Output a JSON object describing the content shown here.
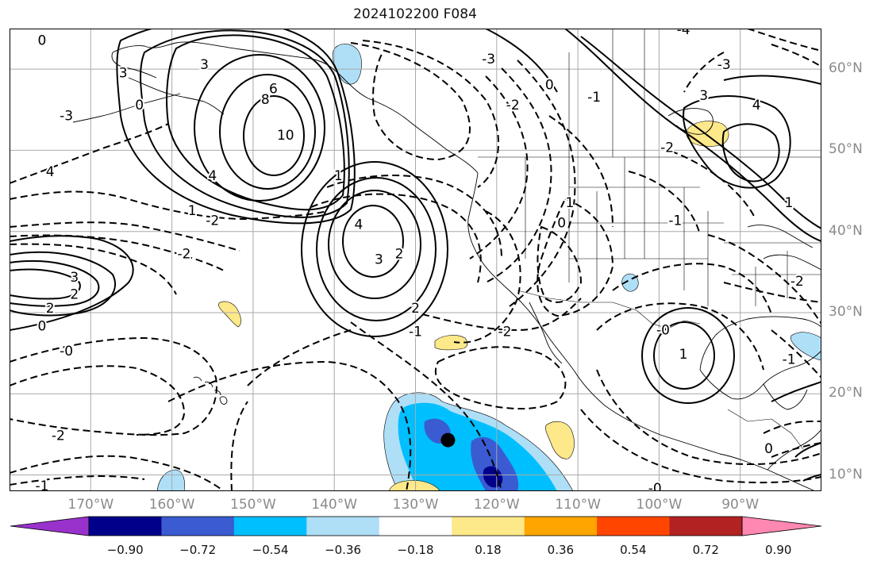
{
  "title": "2024102200 F084",
  "map": {
    "lon_range": [
      -180,
      -80
    ],
    "lat_range": [
      8,
      65
    ],
    "lat_gridlines": [
      10,
      20,
      30,
      40,
      50,
      60
    ],
    "lon_gridlines": [
      -170,
      -160,
      -150,
      -140,
      -130,
      -120,
      -110,
      -100,
      -90
    ],
    "lat_labels": [
      "10°N",
      "20°N",
      "30°N",
      "40°N",
      "50°N",
      "60°N"
    ],
    "lon_labels": [
      "170°W",
      "160°W",
      "150°W",
      "140°W",
      "130°W",
      "120°W",
      "110°W",
      "100°W",
      "90°W"
    ],
    "gridline_color": "#a9a9a9",
    "coastline_color": "#000000",
    "contour_color": "#000000",
    "marker": {
      "name": "storm-center-marker",
      "lon": -126,
      "lat": 14.3,
      "color": "#000000"
    }
  },
  "contour_labels": [
    {
      "text": "0",
      "lon": -176,
      "lat": 63.5
    },
    {
      "text": "3",
      "lon": -166,
      "lat": 59.5
    },
    {
      "text": "3",
      "lon": -156,
      "lat": 60.5
    },
    {
      "text": "6",
      "lon": -147.5,
      "lat": 57.5
    },
    {
      "text": "8",
      "lon": -148.5,
      "lat": 56.2
    },
    {
      "text": "10",
      "lon": -146,
      "lat": 51.8
    },
    {
      "text": "4",
      "lon": -155,
      "lat": 46.8
    },
    {
      "text": "1",
      "lon": -139.5,
      "lat": 46.8
    },
    {
      "text": "4",
      "lon": -175,
      "lat": 47.3
    },
    {
      "text": "-3",
      "lon": -173,
      "lat": 54.2
    },
    {
      "text": "0",
      "lon": -164,
      "lat": 55.5
    },
    {
      "text": "1",
      "lon": -157.5,
      "lat": 42.5
    },
    {
      "text": "-2",
      "lon": -155,
      "lat": 41.3
    },
    {
      "text": "-2",
      "lon": -158.5,
      "lat": 37.2
    },
    {
      "text": "4",
      "lon": -137,
      "lat": 40.8
    },
    {
      "text": "3",
      "lon": -134.5,
      "lat": 36.5
    },
    {
      "text": "2",
      "lon": -132,
      "lat": 37.2
    },
    {
      "text": "3",
      "lon": -172,
      "lat": 34.3
    },
    {
      "text": "2",
      "lon": -175,
      "lat": 30.5
    },
    {
      "text": "0",
      "lon": -176,
      "lat": 28.3
    },
    {
      "text": "-0",
      "lon": -173,
      "lat": 25.2
    },
    {
      "text": "-2",
      "lon": -174,
      "lat": 14.8
    },
    {
      "text": "-1",
      "lon": -176,
      "lat": 8.6
    },
    {
      "text": "2",
      "lon": -172,
      "lat": 32.2
    },
    {
      "text": "-1",
      "lon": -130,
      "lat": 27.6
    },
    {
      "text": "-2",
      "lon": -119,
      "lat": 27.6
    },
    {
      "text": "2",
      "lon": -130,
      "lat": 30.5
    },
    {
      "text": "-3",
      "lon": -121,
      "lat": 61.2
    },
    {
      "text": "-2",
      "lon": -118,
      "lat": 55.5
    },
    {
      "text": "0",
      "lon": -113.5,
      "lat": 58
    },
    {
      "text": "-1",
      "lon": -108,
      "lat": 56.5
    },
    {
      "text": "-3",
      "lon": -92,
      "lat": 60.5
    },
    {
      "text": "3",
      "lon": -94.5,
      "lat": 56.7
    },
    {
      "text": "4",
      "lon": -88,
      "lat": 55.5
    },
    {
      "text": "-2",
      "lon": -99,
      "lat": 50.3
    },
    {
      "text": "-4",
      "lon": -97,
      "lat": 64.8
    },
    {
      "text": "1",
      "lon": -111,
      "lat": 43.5
    },
    {
      "text": "0",
      "lon": -112,
      "lat": 41
    },
    {
      "text": "-1",
      "lon": -98,
      "lat": 41.3
    },
    {
      "text": "-2",
      "lon": -83,
      "lat": 33.8
    },
    {
      "text": "-0",
      "lon": -99.5,
      "lat": 27.8
    },
    {
      "text": "1",
      "lon": -97,
      "lat": 24.8
    },
    {
      "text": "-1",
      "lon": -84,
      "lat": 24.2
    },
    {
      "text": "0",
      "lon": -86.5,
      "lat": 13.2
    },
    {
      "text": "-0",
      "lon": -100.5,
      "lat": 8.3
    },
    {
      "text": "1",
      "lon": -84,
      "lat": 43.5
    }
  ],
  "colorbar": {
    "boundaries": [
      -0.9,
      -0.72,
      -0.54,
      -0.36,
      -0.18,
      0.18,
      0.36,
      0.54,
      0.72,
      0.9
    ],
    "tick_labels": [
      "−0.90",
      "−0.72",
      "−0.54",
      "−0.36",
      "−0.18",
      "0.18",
      "0.36",
      "0.54",
      "0.72",
      "0.90"
    ],
    "colors": [
      "#9932cc",
      "#00008b",
      "#3a5bd2",
      "#00bfff",
      "#aedff7",
      "#ffffff",
      "#fde88a",
      "#ffa500",
      "#ff4500",
      "#b22222",
      "#ff88b2"
    ],
    "extend": "both"
  }
}
